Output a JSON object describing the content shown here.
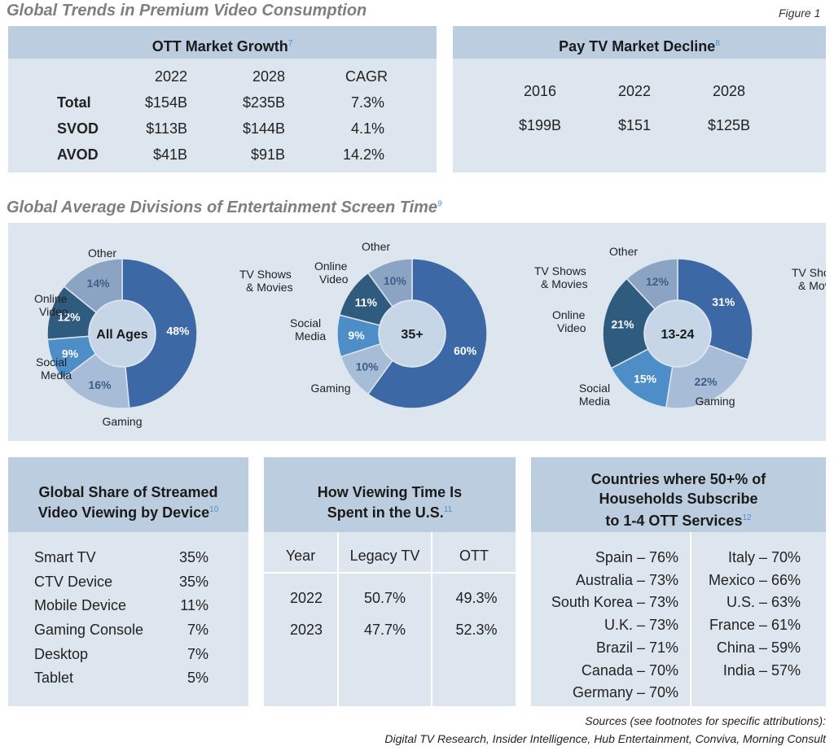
{
  "page": {
    "title": "Global Trends in Premium Video Consumption",
    "figure": "Figure 1",
    "screen_time_title": "Global Average Divisions of Entertainment Screen Time",
    "screen_time_ref": "9",
    "sources_line1": "Sources (see footnotes for specific attributions):",
    "sources_line2": "Digital TV Research, Insider Intelligence, Hub Entertainment, Conviva, Morning Consult"
  },
  "ott": {
    "title": "OTT Market Growth",
    "ref": "7",
    "headers": [
      "2022",
      "2028",
      "CAGR"
    ],
    "rows": [
      {
        "label": "Total",
        "v2022": "$154B",
        "v2028": "$235B",
        "cagr": "7.3%"
      },
      {
        "label": "SVOD",
        "v2022": "$113B",
        "v2028": "$144B",
        "cagr": "4.1%"
      },
      {
        "label": "AVOD",
        "v2022": "$41B",
        "v2028": "$91B",
        "cagr": "14.2%"
      }
    ]
  },
  "paytv": {
    "title": "Pay TV Market Decline",
    "ref": "8",
    "years": [
      "2016",
      "2022",
      "2028"
    ],
    "values": [
      "$199B",
      "$151",
      "$125B"
    ]
  },
  "device": {
    "title1": "Global Share of Streamed",
    "title2": "Video Viewing by Device",
    "ref": "10",
    "rows": [
      {
        "label": "Smart TV",
        "value": "35%"
      },
      {
        "label": "CTV Device",
        "value": "35%"
      },
      {
        "label": "Mobile Device",
        "value": "11%"
      },
      {
        "label": "Gaming Console",
        "value": "7%"
      },
      {
        "label": "Desktop",
        "value": "7%"
      },
      {
        "label": "Tablet",
        "value": "5%"
      }
    ]
  },
  "viewing": {
    "title1": "How Viewing Time Is",
    "title2": "Spent in the U.S.",
    "ref": "11",
    "headers": [
      "Year",
      "Legacy TV",
      "OTT"
    ],
    "rows": [
      {
        "year": "2022",
        "legacy": "50.7%",
        "ott": "49.3%"
      },
      {
        "year": "2023",
        "legacy": "47.7%",
        "ott": "52.3%"
      }
    ]
  },
  "countries": {
    "title1": "Countries where 50+% of",
    "title2": "Households Subscribe",
    "title3": "to 1-4 OTT Services",
    "ref": "12",
    "left": [
      "Spain – 76%",
      "Australia – 73%",
      "South Korea – 73%",
      "U.K. – 73%",
      "Brazil – 71%",
      "Canada – 70%",
      "Germany – 70%"
    ],
    "right": [
      "Italy – 70%",
      "Mexico – 66%",
      "U.S. – 63%",
      "France – 61%",
      "China – 59%",
      "India – 57%"
    ]
  },
  "colors": {
    "tv": "#3c69a6",
    "gaming": "#a7bcd6",
    "social": "#4d8ec8",
    "online": "#2f5b7e",
    "other": "#8ba4c3",
    "panel": "#dde6ef",
    "header": "#bccddf"
  },
  "chart_data": [
    {
      "type": "pie",
      "center_label": "All Ages",
      "slices": [
        {
          "label": "TV Shows & Movies",
          "value": 48,
          "display": "48%",
          "color": "#3c69a6"
        },
        {
          "label": "Gaming",
          "value": 16,
          "display": "16%",
          "color": "#a7bcd6"
        },
        {
          "label": "Social Media",
          "value": 9,
          "display": "9%",
          "color": "#4d8ec8"
        },
        {
          "label": "Online Video",
          "value": 12,
          "display": "12%",
          "color": "#2f5b7e"
        },
        {
          "label": "Other",
          "value": 14,
          "display": "14%",
          "color": "#8ba4c3"
        }
      ]
    },
    {
      "type": "pie",
      "center_label": "35+",
      "slices": [
        {
          "label": "TV Shows & Movies",
          "value": 60,
          "display": "60%",
          "color": "#3c69a6"
        },
        {
          "label": "Gaming",
          "value": 10,
          "display": "10%",
          "color": "#a7bcd6"
        },
        {
          "label": "Social Media",
          "value": 9,
          "display": "9%",
          "color": "#4d8ec8"
        },
        {
          "label": "Online Video",
          "value": 11,
          "display": "11%",
          "color": "#2f5b7e"
        },
        {
          "label": "Other",
          "value": 10,
          "display": "10%",
          "color": "#8ba4c3"
        }
      ]
    },
    {
      "type": "pie",
      "center_label": "13-24",
      "slices": [
        {
          "label": "TV Shows & Movies",
          "value": 31,
          "display": "31%",
          "color": "#3c69a6"
        },
        {
          "label": "Gaming",
          "value": 22,
          "display": "22%",
          "color": "#a7bcd6"
        },
        {
          "label": "Social Media",
          "value": 15,
          "display": "15%",
          "color": "#4d8ec8"
        },
        {
          "label": "Online Video",
          "value": 21,
          "display": "21%",
          "color": "#2f5b7e"
        },
        {
          "label": "Other",
          "value": 12,
          "display": "12%",
          "color": "#8ba4c3"
        }
      ]
    }
  ]
}
